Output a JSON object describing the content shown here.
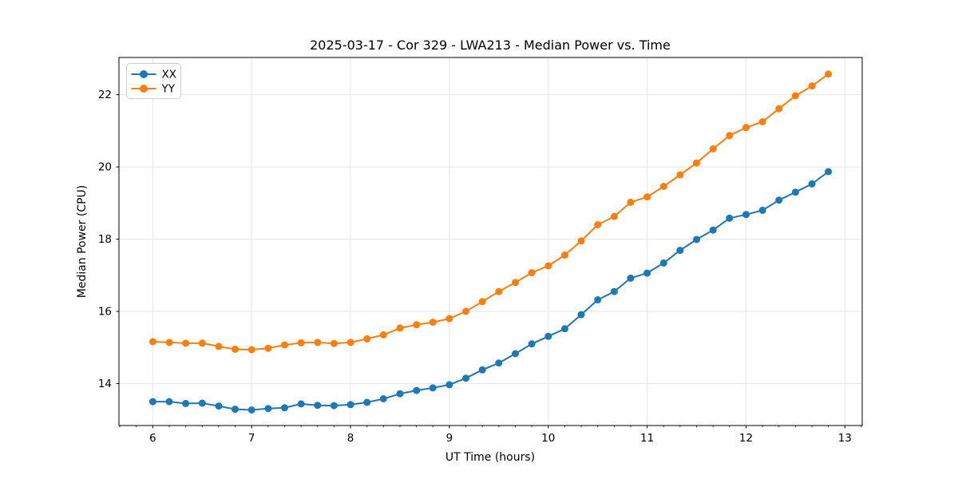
{
  "window": {
    "background": "#ffffff"
  },
  "chart_data": {
    "type": "line",
    "title": "2025-03-17 - Cor 329 - LWA213 - Median Power vs. Time",
    "xlabel": "UT Time (hours)",
    "ylabel": "Median Power (CPU)",
    "xlim": [
      5.658,
      13.175
    ],
    "ylim": [
      12.84,
      23.03
    ],
    "xticks": [
      6,
      7,
      8,
      9,
      10,
      11,
      12,
      13
    ],
    "yticks": [
      14,
      16,
      18,
      20,
      22
    ],
    "x_minor_step": 0.166667,
    "grid": true,
    "grid_color": "#e3e3e3",
    "spine_color": "#000000",
    "legend_position": "upper-left",
    "x": [
      6.0,
      6.167,
      6.333,
      6.5,
      6.667,
      6.833,
      7.0,
      7.167,
      7.333,
      7.5,
      7.667,
      7.833,
      8.0,
      8.167,
      8.333,
      8.5,
      8.667,
      8.833,
      9.0,
      9.167,
      9.333,
      9.5,
      9.667,
      9.833,
      10.0,
      10.167,
      10.333,
      10.5,
      10.667,
      10.833,
      11.0,
      11.167,
      11.333,
      11.5,
      11.667,
      11.833,
      12.0,
      12.167,
      12.333,
      12.5,
      12.667,
      12.833
    ],
    "series": [
      {
        "name": "XX",
        "color": "#1f77b4",
        "marker": "circle",
        "values": [
          13.5,
          13.5,
          13.45,
          13.46,
          13.38,
          13.29,
          13.27,
          13.31,
          13.33,
          13.44,
          13.4,
          13.39,
          13.42,
          13.48,
          13.58,
          13.72,
          13.81,
          13.88,
          13.97,
          14.15,
          14.38,
          14.57,
          14.83,
          15.1,
          15.31,
          15.52,
          15.91,
          16.32,
          16.55,
          16.92,
          17.06,
          17.34,
          17.69,
          17.99,
          18.25,
          18.58,
          18.68,
          18.8,
          19.08,
          19.3,
          19.53,
          19.87
        ]
      },
      {
        "name": "YY",
        "color": "#ff7f0e",
        "marker": "circle",
        "values": [
          15.16,
          15.14,
          15.12,
          15.12,
          15.03,
          14.95,
          14.94,
          14.98,
          15.07,
          15.13,
          15.14,
          15.11,
          15.14,
          15.24,
          15.35,
          15.54,
          15.63,
          15.7,
          15.8,
          16.0,
          16.27,
          16.55,
          16.8,
          17.07,
          17.26,
          17.56,
          17.95,
          18.4,
          18.63,
          19.02,
          19.17,
          19.46,
          19.78,
          20.11,
          20.5,
          20.87,
          21.09,
          21.25,
          21.61,
          21.97,
          22.24,
          22.57
        ]
      }
    ]
  }
}
